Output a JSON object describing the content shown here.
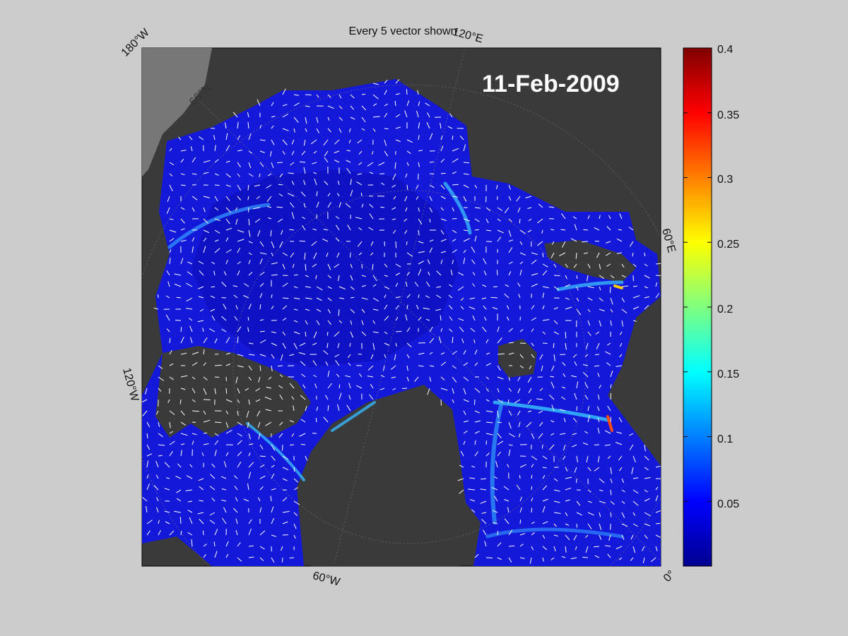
{
  "figure": {
    "title": "Every 5 vector shown",
    "date": "11-Feb-2009"
  },
  "graticule": {
    "lon_labels": [
      "180°W",
      "120°E",
      "60°E",
      "0°",
      "60°W",
      "120°W"
    ],
    "lat_label": "66°N"
  },
  "colorbar": {
    "ticks": [
      "0.4",
      "0.35",
      "0.3",
      "0.25",
      "0.2",
      "0.15",
      "0.1",
      "0.05"
    ],
    "tick_values": [
      0.4,
      0.35,
      0.3,
      0.25,
      0.2,
      0.15,
      0.1,
      0.05
    ],
    "range": [
      0,
      0.4
    ],
    "colormap": "jet"
  },
  "colors": {
    "figure_bg": "#cccccc",
    "land": "#3a3a3a",
    "outside_land": "#777777",
    "ice_low": "#1418d8",
    "vector": "#ffffff"
  }
}
